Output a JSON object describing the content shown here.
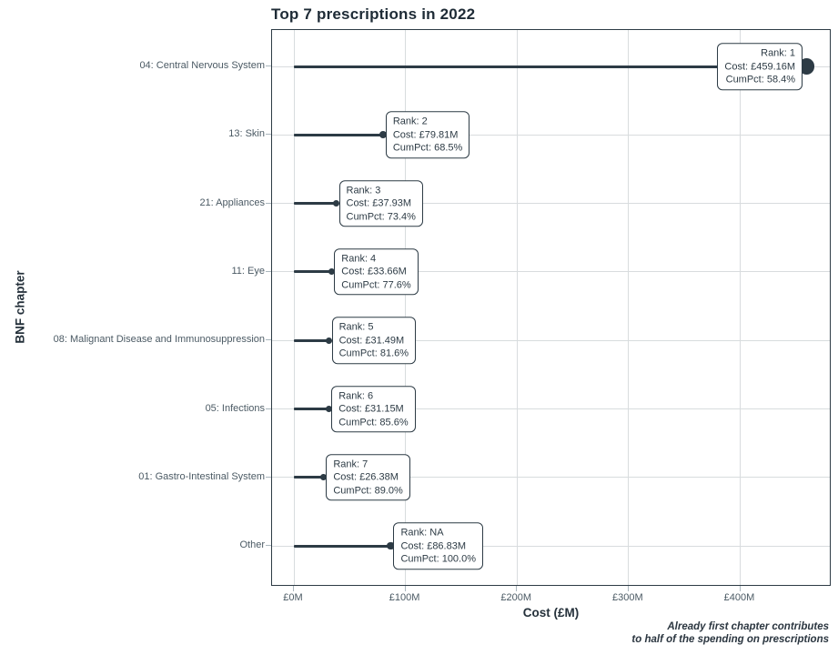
{
  "chart_data": {
    "type": "bar",
    "variant": "horizontal lollipop / pareto with annotation boxes",
    "title": "Top 7 prescriptions in 2022",
    "xlabel": "Cost (£M)",
    "ylabel": "BNF chapter",
    "xlim": [
      0,
      482
    ],
    "grid": true,
    "legend": "none",
    "x_ticks": [
      {
        "value": 0,
        "label": "£0M"
      },
      {
        "value": 100,
        "label": "£100M"
      },
      {
        "value": 200,
        "label": "£200M"
      },
      {
        "value": 300,
        "label": "£300M"
      },
      {
        "value": 400,
        "label": "£400M"
      }
    ],
    "rows": [
      {
        "category": "04: Central Nervous System",
        "rank": "1",
        "cost_m": 459.16,
        "cum_pct": 58.4,
        "rank_label": "Rank: 1",
        "cost_label": "Cost: £459.16M",
        "cumpct_label": "CumPct: 58.4%",
        "label_side": "left"
      },
      {
        "category": "13: Skin",
        "rank": "2",
        "cost_m": 79.81,
        "cum_pct": 68.5,
        "rank_label": "Rank: 2",
        "cost_label": "Cost: £79.81M",
        "cumpct_label": "CumPct: 68.5%",
        "label_side": "right"
      },
      {
        "category": "21: Appliances",
        "rank": "3",
        "cost_m": 37.93,
        "cum_pct": 73.4,
        "rank_label": "Rank: 3",
        "cost_label": "Cost: £37.93M",
        "cumpct_label": "CumPct: 73.4%",
        "label_side": "right"
      },
      {
        "category": "11: Eye",
        "rank": "4",
        "cost_m": 33.66,
        "cum_pct": 77.6,
        "rank_label": "Rank: 4",
        "cost_label": "Cost: £33.66M",
        "cumpct_label": "CumPct: 77.6%",
        "label_side": "right"
      },
      {
        "category": "08: Malignant Disease and Immunosuppression",
        "rank": "5",
        "cost_m": 31.49,
        "cum_pct": 81.6,
        "rank_label": "Rank: 5",
        "cost_label": "Cost: £31.49M",
        "cumpct_label": "CumPct: 81.6%",
        "label_side": "right"
      },
      {
        "category": "05: Infections",
        "rank": "6",
        "cost_m": 31.15,
        "cum_pct": 85.6,
        "rank_label": "Rank: 6",
        "cost_label": "Cost: £31.15M",
        "cumpct_label": "CumPct: 85.6%",
        "label_side": "right"
      },
      {
        "category": "01: Gastro-Intestinal System",
        "rank": "7",
        "cost_m": 26.38,
        "cum_pct": 89.0,
        "rank_label": "Rank: 7",
        "cost_label": "Cost: £26.38M",
        "cumpct_label": "CumPct: 89.0%",
        "label_side": "right"
      },
      {
        "category": "Other",
        "rank": "NA",
        "cost_m": 86.83,
        "cum_pct": 100.0,
        "rank_label": "Rank: NA",
        "cost_label": "Cost: £86.83M",
        "cumpct_label": "CumPct: 100.0%",
        "label_side": "right"
      }
    ],
    "caption": {
      "line1": "Already first chapter contributes",
      "line2": "to half of the spending on prescriptions"
    },
    "colors": {
      "accent": "#2d3b45",
      "grid": "#d8dcde",
      "tick_label": "#4b5a64",
      "title_text": "#1e2b36",
      "background": "#ffffff"
    }
  }
}
